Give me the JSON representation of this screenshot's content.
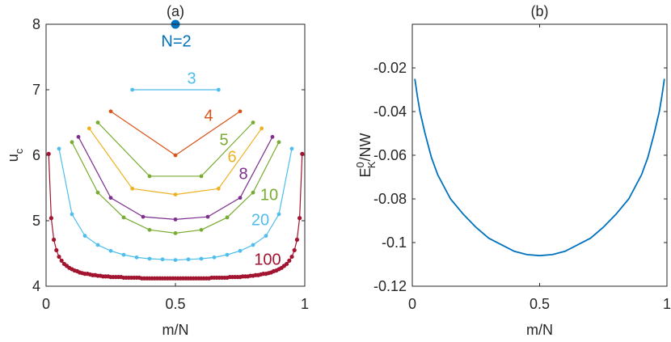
{
  "chart_data": [
    {
      "type": "line",
      "title": "(a)",
      "xlabel": "m/N",
      "ylabel": {
        "base": "u",
        "sub": "c"
      },
      "xlim": [
        0,
        1
      ],
      "xticks": [
        0,
        0.5,
        1
      ],
      "ylim": [
        4,
        8
      ],
      "yticks": [
        4,
        5,
        6,
        7,
        8
      ],
      "series": [
        {
          "name": "N=2",
          "color": "#0072BD",
          "x": [
            0.5
          ],
          "values": [
            8
          ]
        },
        {
          "name": "3",
          "color": "#4DBEEE",
          "x": [
            0.3333,
            0.6667
          ],
          "values": [
            7.0,
            7.0
          ]
        },
        {
          "name": "4",
          "color": "#D95319",
          "x": [
            0.25,
            0.5,
            0.75
          ],
          "values": [
            6.67,
            6.0,
            6.67
          ]
        },
        {
          "name": "5",
          "color": "#77AC30",
          "x": [
            0.2,
            0.4,
            0.6,
            0.8
          ],
          "values": [
            6.5,
            5.68,
            5.68,
            6.5
          ]
        },
        {
          "name": "6",
          "color": "#EDB120",
          "x": [
            0.1667,
            0.3333,
            0.5,
            0.6667,
            0.8333
          ],
          "values": [
            6.41,
            5.49,
            5.4,
            5.49,
            6.41
          ]
        },
        {
          "name": "8",
          "color": "#7E2F8E",
          "x": [
            0.125,
            0.25,
            0.375,
            0.5,
            0.625,
            0.75,
            0.875
          ],
          "values": [
            6.28,
            5.35,
            5.06,
            5.02,
            5.06,
            5.35,
            6.28
          ]
        },
        {
          "name": "10",
          "color": "#77AC30",
          "x": [
            0.1,
            0.2,
            0.3,
            0.4,
            0.5,
            0.6,
            0.7,
            0.8,
            0.9
          ],
          "values": [
            6.2,
            5.43,
            5.05,
            4.86,
            4.81,
            4.86,
            5.05,
            5.43,
            6.2
          ]
        },
        {
          "name": "20",
          "color": "#4DBEEE",
          "x": [
            0.05,
            0.1,
            0.15,
            0.2,
            0.25,
            0.3,
            0.35,
            0.4,
            0.45,
            0.5,
            0.55,
            0.6,
            0.65,
            0.7,
            0.75,
            0.8,
            0.85,
            0.9,
            0.95
          ],
          "values": [
            6.1,
            5.1,
            4.77,
            4.63,
            4.54,
            4.48,
            4.44,
            4.42,
            4.41,
            4.4,
            4.41,
            4.42,
            4.44,
            4.48,
            4.54,
            4.63,
            4.77,
            5.1,
            6.1
          ]
        },
        {
          "name": "100",
          "color": "#A2142F",
          "x": [
            0.01,
            0.02,
            0.03,
            0.04,
            0.05,
            0.06,
            0.07,
            0.08,
            0.09,
            0.1,
            0.11,
            0.12,
            0.13,
            0.14,
            0.15,
            0.16,
            0.17,
            0.18,
            0.19,
            0.2,
            0.21,
            0.22,
            0.23,
            0.24,
            0.25,
            0.26,
            0.27,
            0.28,
            0.29,
            0.3,
            0.31,
            0.32,
            0.33,
            0.34,
            0.35,
            0.36,
            0.37,
            0.38,
            0.39,
            0.4,
            0.41,
            0.42,
            0.43,
            0.44,
            0.45,
            0.46,
            0.47,
            0.48,
            0.49,
            0.5,
            0.51,
            0.52,
            0.53,
            0.54,
            0.55,
            0.56,
            0.57,
            0.58,
            0.59,
            0.6,
            0.61,
            0.62,
            0.63,
            0.64,
            0.65,
            0.66,
            0.67,
            0.68,
            0.69,
            0.7,
            0.71,
            0.72,
            0.73,
            0.74,
            0.75,
            0.76,
            0.77,
            0.78,
            0.79,
            0.8,
            0.81,
            0.82,
            0.83,
            0.84,
            0.85,
            0.86,
            0.87,
            0.88,
            0.89,
            0.9,
            0.91,
            0.92,
            0.93,
            0.94,
            0.95,
            0.96,
            0.97,
            0.98,
            0.99
          ],
          "values": [
            6.02,
            5.04,
            4.71,
            4.55,
            4.45,
            4.39,
            4.34,
            4.31,
            4.28,
            4.26,
            4.24,
            4.23,
            4.21,
            4.2,
            4.19,
            4.19,
            4.18,
            4.17,
            4.17,
            4.16,
            4.16,
            4.15,
            4.15,
            4.15,
            4.14,
            4.14,
            4.14,
            4.14,
            4.14,
            4.13,
            4.13,
            4.13,
            4.13,
            4.13,
            4.13,
            4.13,
            4.12,
            4.12,
            4.12,
            4.12,
            4.12,
            4.12,
            4.12,
            4.12,
            4.12,
            4.12,
            4.12,
            4.12,
            4.12,
            4.12,
            4.12,
            4.12,
            4.12,
            4.12,
            4.12,
            4.12,
            4.12,
            4.12,
            4.12,
            4.12,
            4.12,
            4.12,
            4.12,
            4.13,
            4.13,
            4.13,
            4.13,
            4.13,
            4.13,
            4.13,
            4.14,
            4.14,
            4.14,
            4.14,
            4.14,
            4.15,
            4.15,
            4.15,
            4.16,
            4.16,
            4.17,
            4.17,
            4.18,
            4.19,
            4.19,
            4.2,
            4.21,
            4.23,
            4.24,
            4.26,
            4.28,
            4.31,
            4.34,
            4.39,
            4.45,
            4.55,
            4.71,
            5.04,
            6.02
          ]
        }
      ]
    },
    {
      "type": "line",
      "title": "(b)",
      "xlabel": "m/N",
      "ylabel": {
        "base": "E",
        "sup": "0",
        "sub": "K",
        "rest": "/NW"
      },
      "xlim": [
        0,
        1
      ],
      "xticks": [
        0,
        0.5,
        1
      ],
      "ylim": [
        -0.12,
        0
      ],
      "yticks": [
        -0.12,
        -0.1,
        -0.08,
        -0.06,
        -0.04,
        -0.02
      ],
      "series": [
        {
          "color": "#0072BD",
          "x": [
            0.01,
            0.02,
            0.03,
            0.05,
            0.075,
            0.1,
            0.15,
            0.2,
            0.25,
            0.3,
            0.35,
            0.4,
            0.45,
            0.5,
            0.55,
            0.6,
            0.65,
            0.7,
            0.75,
            0.8,
            0.85,
            0.9,
            0.925,
            0.95,
            0.97,
            0.98,
            0.99
          ],
          "values": [
            -0.025,
            -0.033,
            -0.04,
            -0.05,
            -0.061,
            -0.069,
            -0.08,
            -0.087,
            -0.093,
            -0.098,
            -0.101,
            -0.104,
            -0.1055,
            -0.106,
            -0.1055,
            -0.104,
            -0.101,
            -0.098,
            -0.093,
            -0.087,
            -0.08,
            -0.069,
            -0.061,
            -0.05,
            -0.04,
            -0.033,
            -0.025
          ]
        }
      ]
    }
  ]
}
